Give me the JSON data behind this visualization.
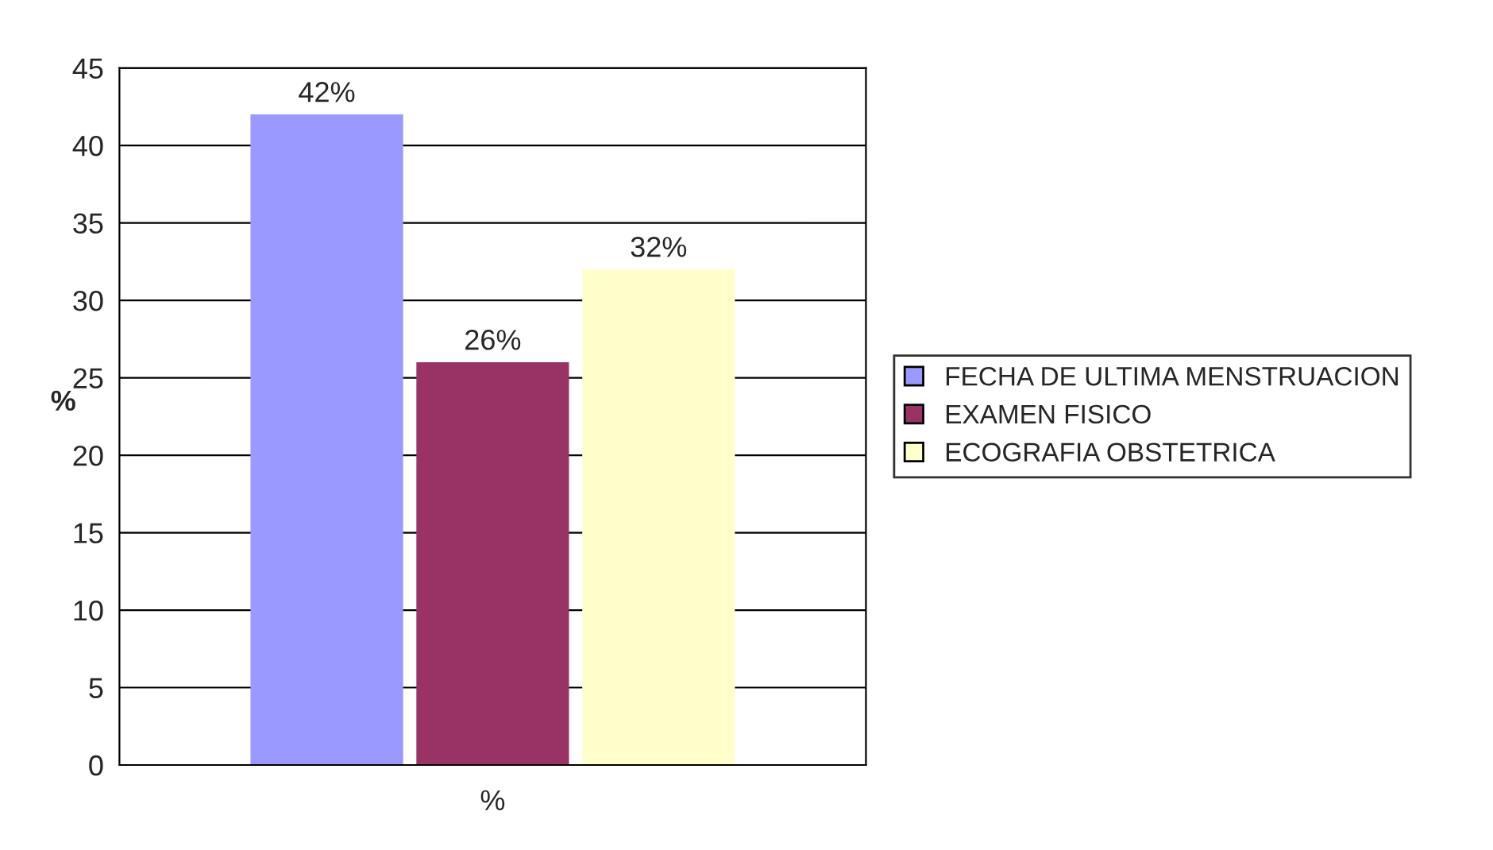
{
  "chart_data": {
    "type": "bar",
    "categories": [
      null
    ],
    "xlabel": "%",
    "ylabel": "%",
    "series": [
      {
        "name": "FECHA DE ULTIMA MENSTRUACION",
        "color": "#9999ff",
        "values": [
          42
        ],
        "value_labels": [
          "42%"
        ]
      },
      {
        "name": "EXAMEN FISICO",
        "color": "#993366",
        "values": [
          26
        ],
        "value_labels": [
          "26%"
        ]
      },
      {
        "name": "ECOGRAFIA OBSTETRICA",
        "color": "#ffffcc",
        "values": [
          32
        ],
        "value_labels": [
          "32%"
        ]
      }
    ],
    "ylim": [
      0,
      45
    ],
    "yticks": [
      0,
      5,
      10,
      15,
      20,
      25,
      30,
      35,
      40,
      45
    ],
    "grid": "y",
    "legend": "right"
  }
}
